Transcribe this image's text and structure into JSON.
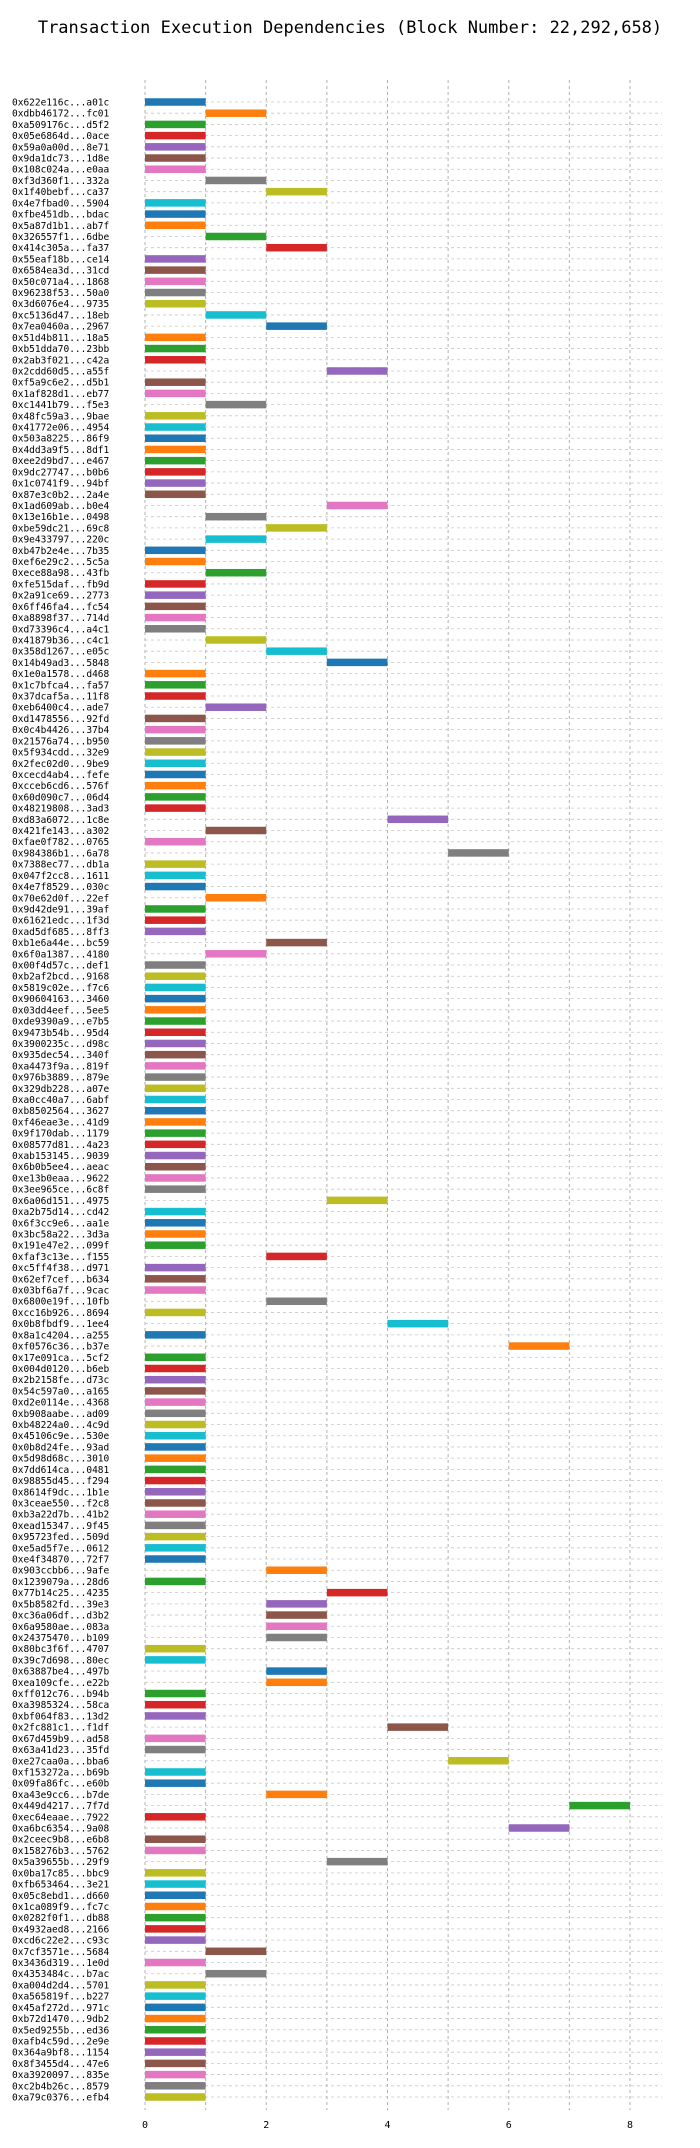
{
  "chart_data": {
    "type": "bar",
    "title": "Transaction Execution Dependencies (Block Number: 22,292,658)",
    "xlabel": "",
    "ylabel": "",
    "xlim": [
      0,
      8
    ],
    "x_ticks": [
      0,
      2,
      4,
      6,
      8
    ],
    "grid": true,
    "legend": "none",
    "colors": [
      "#1f77b4",
      "#ff7f0e",
      "#2ca02c",
      "#d62728",
      "#9467bd",
      "#8c564b",
      "#e377c2",
      "#7f7f7f",
      "#bcbd22",
      "#17becf"
    ],
    "bars": [
      {
        "tx": "0x622e116c...a01c",
        "start": 0,
        "end": 1
      },
      {
        "tx": "0xdbb46172...fc01",
        "start": 1,
        "end": 2
      },
      {
        "tx": "0xa509176c...d5f2",
        "start": 0,
        "end": 1
      },
      {
        "tx": "0x05e6864d...0ace",
        "start": 0,
        "end": 1
      },
      {
        "tx": "0x59a0a00d...8e71",
        "start": 0,
        "end": 1
      },
      {
        "tx": "0x9da1dc73...1d8e",
        "start": 0,
        "end": 1
      },
      {
        "tx": "0x108c024a...e0aa",
        "start": 0,
        "end": 1
      },
      {
        "tx": "0xf3d360f1...332a",
        "start": 1,
        "end": 2
      },
      {
        "tx": "0x1f40bebf...ca37",
        "start": 2,
        "end": 3
      },
      {
        "tx": "0x4e7fbad0...5904",
        "start": 0,
        "end": 1
      },
      {
        "tx": "0xfbe451db...bdac",
        "start": 0,
        "end": 1
      },
      {
        "tx": "0x5a87d1b1...ab7f",
        "start": 0,
        "end": 1
      },
      {
        "tx": "0x326557f1...6dbe",
        "start": 1,
        "end": 2
      },
      {
        "tx": "0x414c305a...fa37",
        "start": 2,
        "end": 3
      },
      {
        "tx": "0x55eaf18b...ce14",
        "start": 0,
        "end": 1
      },
      {
        "tx": "0x6584ea3d...31cd",
        "start": 0,
        "end": 1
      },
      {
        "tx": "0x50c071a4...1868",
        "start": 0,
        "end": 1
      },
      {
        "tx": "0x96238f53...50a0",
        "start": 0,
        "end": 1
      },
      {
        "tx": "0x3d6076e4...9735",
        "start": 0,
        "end": 1
      },
      {
        "tx": "0xc5136d47...18eb",
        "start": 1,
        "end": 2
      },
      {
        "tx": "0x7ea0460a...2967",
        "start": 2,
        "end": 3
      },
      {
        "tx": "0x51d4b811...18a5",
        "start": 0,
        "end": 1
      },
      {
        "tx": "0xb51dda70...23bb",
        "start": 0,
        "end": 1
      },
      {
        "tx": "0x2ab3f021...c42a",
        "start": 0,
        "end": 1
      },
      {
        "tx": "0x2cdd60d5...a55f",
        "start": 3,
        "end": 4
      },
      {
        "tx": "0xf5a9c6e2...d5b1",
        "start": 0,
        "end": 1
      },
      {
        "tx": "0x1af828d1...eb77",
        "start": 0,
        "end": 1
      },
      {
        "tx": "0xc1441b79...f5e3",
        "start": 1,
        "end": 2
      },
      {
        "tx": "0x48fc59a3...9bae",
        "start": 0,
        "end": 1
      },
      {
        "tx": "0x41772e06...4954",
        "start": 0,
        "end": 1
      },
      {
        "tx": "0x503a8225...86f9",
        "start": 0,
        "end": 1
      },
      {
        "tx": "0x4dd3a9f5...8df1",
        "start": 0,
        "end": 1
      },
      {
        "tx": "0xee2d9bd7...e467",
        "start": 0,
        "end": 1
      },
      {
        "tx": "0x9dc27747...b0b6",
        "start": 0,
        "end": 1
      },
      {
        "tx": "0x1c0741f9...94bf",
        "start": 0,
        "end": 1
      },
      {
        "tx": "0x87e3c0b2...2a4e",
        "start": 0,
        "end": 1
      },
      {
        "tx": "0x1ad609ab...b0e4",
        "start": 3,
        "end": 4
      },
      {
        "tx": "0x13e16b1e...0498",
        "start": 1,
        "end": 2
      },
      {
        "tx": "0xbe59dc21...69c8",
        "start": 2,
        "end": 3
      },
      {
        "tx": "0x9e433797...220c",
        "start": 1,
        "end": 2
      },
      {
        "tx": "0xb47b2e4e...7b35",
        "start": 0,
        "end": 1
      },
      {
        "tx": "0xef6e29c2...5c5a",
        "start": 0,
        "end": 1
      },
      {
        "tx": "0xece88a98...43fb",
        "start": 1,
        "end": 2
      },
      {
        "tx": "0xfe515daf...fb9d",
        "start": 0,
        "end": 1
      },
      {
        "tx": "0x2a91ce69...2773",
        "start": 0,
        "end": 1
      },
      {
        "tx": "0x6ff46fa4...fc54",
        "start": 0,
        "end": 1
      },
      {
        "tx": "0xa8898f37...714d",
        "start": 0,
        "end": 1
      },
      {
        "tx": "0xd73396c4...a4c1",
        "start": 0,
        "end": 1
      },
      {
        "tx": "0x41879b36...c4c1",
        "start": 1,
        "end": 2
      },
      {
        "tx": "0x358d1267...e05c",
        "start": 2,
        "end": 3
      },
      {
        "tx": "0x14b49ad3...5848",
        "start": 3,
        "end": 4
      },
      {
        "tx": "0x1e0a1578...d468",
        "start": 0,
        "end": 1
      },
      {
        "tx": "0x1c7bfca4...fa57",
        "start": 0,
        "end": 1
      },
      {
        "tx": "0x37dcaf5a...11f8",
        "start": 0,
        "end": 1
      },
      {
        "tx": "0xeb6400c4...ade7",
        "start": 1,
        "end": 2
      },
      {
        "tx": "0xd1478556...92fd",
        "start": 0,
        "end": 1
      },
      {
        "tx": "0x0c4b4426...37b4",
        "start": 0,
        "end": 1
      },
      {
        "tx": "0x21576a74...b950",
        "start": 0,
        "end": 1
      },
      {
        "tx": "0x5f934cdd...32e9",
        "start": 0,
        "end": 1
      },
      {
        "tx": "0x2fec02d0...9be9",
        "start": 0,
        "end": 1
      },
      {
        "tx": "0xcecd4ab4...fefe",
        "start": 0,
        "end": 1
      },
      {
        "tx": "0xcceb6cd6...576f",
        "start": 0,
        "end": 1
      },
      {
        "tx": "0x60d090c7...06d4",
        "start": 0,
        "end": 1
      },
      {
        "tx": "0x48219808...3ad3",
        "start": 0,
        "end": 1
      },
      {
        "tx": "0xd83a6072...1c8e",
        "start": 4,
        "end": 5
      },
      {
        "tx": "0x421fe143...a302",
        "start": 1,
        "end": 2
      },
      {
        "tx": "0xfae0f782...0765",
        "start": 0,
        "end": 1
      },
      {
        "tx": "0x984386b1...6a78",
        "start": 5,
        "end": 6
      },
      {
        "tx": "0x7388ec77...db1a",
        "start": 0,
        "end": 1
      },
      {
        "tx": "0x047f2cc8...1611",
        "start": 0,
        "end": 1
      },
      {
        "tx": "0x4e7f8529...030c",
        "start": 0,
        "end": 1
      },
      {
        "tx": "0x70e62d0f...22ef",
        "start": 1,
        "end": 2
      },
      {
        "tx": "0x9d42de91...39af",
        "start": 0,
        "end": 1
      },
      {
        "tx": "0x61621edc...1f3d",
        "start": 0,
        "end": 1
      },
      {
        "tx": "0xad5df685...8ff3",
        "start": 0,
        "end": 1
      },
      {
        "tx": "0xb1e6a44e...bc59",
        "start": 2,
        "end": 3
      },
      {
        "tx": "0x6f0a1387...4180",
        "start": 1,
        "end": 2
      },
      {
        "tx": "0x00f4d57c...def1",
        "start": 0,
        "end": 1
      },
      {
        "tx": "0xb2af2bcd...9168",
        "start": 0,
        "end": 1
      },
      {
        "tx": "0x5819c02e...f7c6",
        "start": 0,
        "end": 1
      },
      {
        "tx": "0x90604163...3460",
        "start": 0,
        "end": 1
      },
      {
        "tx": "0x03dd4eef...5ee5",
        "start": 0,
        "end": 1
      },
      {
        "tx": "0xde9390a9...e7b5",
        "start": 0,
        "end": 1
      },
      {
        "tx": "0x9473b54b...95d4",
        "start": 0,
        "end": 1
      },
      {
        "tx": "0x3900235c...d98c",
        "start": 0,
        "end": 1
      },
      {
        "tx": "0x935dec54...340f",
        "start": 0,
        "end": 1
      },
      {
        "tx": "0xa4473f9a...819f",
        "start": 0,
        "end": 1
      },
      {
        "tx": "0x976b3889...879e",
        "start": 0,
        "end": 1
      },
      {
        "tx": "0x329db228...a07e",
        "start": 0,
        "end": 1
      },
      {
        "tx": "0xa0cc40a7...6abf",
        "start": 0,
        "end": 1
      },
      {
        "tx": "0xb8502564...3627",
        "start": 0,
        "end": 1
      },
      {
        "tx": "0xf46eae3e...41d9",
        "start": 0,
        "end": 1
      },
      {
        "tx": "0x9f170dab...1179",
        "start": 0,
        "end": 1
      },
      {
        "tx": "0x08577d81...4a23",
        "start": 0,
        "end": 1
      },
      {
        "tx": "0xab153145...9039",
        "start": 0,
        "end": 1
      },
      {
        "tx": "0x6b0b5ee4...aeac",
        "start": 0,
        "end": 1
      },
      {
        "tx": "0xe13b0eaa...9622",
        "start": 0,
        "end": 1
      },
      {
        "tx": "0x3ee965ce...6c8f",
        "start": 0,
        "end": 1
      },
      {
        "tx": "0x6a06d151...4975",
        "start": 3,
        "end": 4
      },
      {
        "tx": "0xa2b75d14...cd42",
        "start": 0,
        "end": 1
      },
      {
        "tx": "0x6f3cc9e6...aa1e",
        "start": 0,
        "end": 1
      },
      {
        "tx": "0x3bc58a22...3d3a",
        "start": 0,
        "end": 1
      },
      {
        "tx": "0x191e47e2...099f",
        "start": 0,
        "end": 1
      },
      {
        "tx": "0xfaf3c13e...f155",
        "start": 2,
        "end": 3
      },
      {
        "tx": "0xc5ff4f38...d971",
        "start": 0,
        "end": 1
      },
      {
        "tx": "0x62ef7cef...b634",
        "start": 0,
        "end": 1
      },
      {
        "tx": "0x03bf6a7f...9cac",
        "start": 0,
        "end": 1
      },
      {
        "tx": "0x6800e19f...10fb",
        "start": 2,
        "end": 3
      },
      {
        "tx": "0xcc16b926...8694",
        "start": 0,
        "end": 1
      },
      {
        "tx": "0x0b8fbdf9...1ee4",
        "start": 4,
        "end": 5
      },
      {
        "tx": "0x8a1c4204...a255",
        "start": 0,
        "end": 1
      },
      {
        "tx": "0xf0576c36...b37e",
        "start": 6,
        "end": 7
      },
      {
        "tx": "0x17e091ca...5cf2",
        "start": 0,
        "end": 1
      },
      {
        "tx": "0x004d0120...b6eb",
        "start": 0,
        "end": 1
      },
      {
        "tx": "0x2b2158fe...d73c",
        "start": 0,
        "end": 1
      },
      {
        "tx": "0x54c597a0...a165",
        "start": 0,
        "end": 1
      },
      {
        "tx": "0xd2e0114e...4368",
        "start": 0,
        "end": 1
      },
      {
        "tx": "0xb908aabe...ad09",
        "start": 0,
        "end": 1
      },
      {
        "tx": "0xb48224a0...4c9d",
        "start": 0,
        "end": 1
      },
      {
        "tx": "0x45106c9e...530e",
        "start": 0,
        "end": 1
      },
      {
        "tx": "0x0b8d24fe...93ad",
        "start": 0,
        "end": 1
      },
      {
        "tx": "0x5d98d68c...3010",
        "start": 0,
        "end": 1
      },
      {
        "tx": "0x7dd614ca...0481",
        "start": 0,
        "end": 1
      },
      {
        "tx": "0x98855d45...f294",
        "start": 0,
        "end": 1
      },
      {
        "tx": "0x8614f9dc...1b1e",
        "start": 0,
        "end": 1
      },
      {
        "tx": "0x3ceae550...f2c8",
        "start": 0,
        "end": 1
      },
      {
        "tx": "0xb3a22d7b...41b2",
        "start": 0,
        "end": 1
      },
      {
        "tx": "0xead15347...9f45",
        "start": 0,
        "end": 1
      },
      {
        "tx": "0x95723fed...509d",
        "start": 0,
        "end": 1
      },
      {
        "tx": "0xe5ad5f7e...0612",
        "start": 0,
        "end": 1
      },
      {
        "tx": "0xe4f34870...72f7",
        "start": 0,
        "end": 1
      },
      {
        "tx": "0x903ccbb6...9afe",
        "start": 2,
        "end": 3
      },
      {
        "tx": "0x1239079a...28d6",
        "start": 0,
        "end": 1
      },
      {
        "tx": "0x77b14c25...4235",
        "start": 3,
        "end": 4
      },
      {
        "tx": "0x5b8582fd...39e3",
        "start": 2,
        "end": 3
      },
      {
        "tx": "0xc36a06df...d3b2",
        "start": 2,
        "end": 3
      },
      {
        "tx": "0x6a9580ae...083a",
        "start": 2,
        "end": 3
      },
      {
        "tx": "0x24375470...b109",
        "start": 2,
        "end": 3
      },
      {
        "tx": "0x80bc3f6f...4707",
        "start": 0,
        "end": 1
      },
      {
        "tx": "0x39c7d698...80ec",
        "start": 0,
        "end": 1
      },
      {
        "tx": "0x63887be4...497b",
        "start": 2,
        "end": 3
      },
      {
        "tx": "0xea109cfe...e22b",
        "start": 2,
        "end": 3
      },
      {
        "tx": "0xff012c76...b94b",
        "start": 0,
        "end": 1
      },
      {
        "tx": "0xa3985324...58ca",
        "start": 0,
        "end": 1
      },
      {
        "tx": "0xbf064f83...13d2",
        "start": 0,
        "end": 1
      },
      {
        "tx": "0x2fc881c1...f1df",
        "start": 4,
        "end": 5
      },
      {
        "tx": "0x67d459b9...ad58",
        "start": 0,
        "end": 1
      },
      {
        "tx": "0x63a41d23...35fd",
        "start": 0,
        "end": 1
      },
      {
        "tx": "0xe27caa0a...bba6",
        "start": 5,
        "end": 6
      },
      {
        "tx": "0xf153272a...b69b",
        "start": 0,
        "end": 1
      },
      {
        "tx": "0x09fa86fc...e60b",
        "start": 0,
        "end": 1
      },
      {
        "tx": "0xa43e9cc6...b7de",
        "start": 2,
        "end": 3
      },
      {
        "tx": "0x449d4217...7f7d",
        "start": 7,
        "end": 8
      },
      {
        "tx": "0xec64eaae...7922",
        "start": 0,
        "end": 1
      },
      {
        "tx": "0xa6bc6354...9a08",
        "start": 6,
        "end": 7
      },
      {
        "tx": "0x2ceec9b8...e6b8",
        "start": 0,
        "end": 1
      },
      {
        "tx": "0x158276b3...5762",
        "start": 0,
        "end": 1
      },
      {
        "tx": "0x5a39655b...29f9",
        "start": 3,
        "end": 4
      },
      {
        "tx": "0x0ba17c85...bbc9",
        "start": 0,
        "end": 1
      },
      {
        "tx": "0xfb653464...3e21",
        "start": 0,
        "end": 1
      },
      {
        "tx": "0x05c8ebd1...d660",
        "start": 0,
        "end": 1
      },
      {
        "tx": "0x1ca089f9...fc7c",
        "start": 0,
        "end": 1
      },
      {
        "tx": "0x0282f0f1...db88",
        "start": 0,
        "end": 1
      },
      {
        "tx": "0x4932aed8...2166",
        "start": 0,
        "end": 1
      },
      {
        "tx": "0xcd6c22e2...c93c",
        "start": 0,
        "end": 1
      },
      {
        "tx": "0x7cf3571e...5684",
        "start": 1,
        "end": 2
      },
      {
        "tx": "0x3436d319...1e0d",
        "start": 0,
        "end": 1
      },
      {
        "tx": "0x4353484c...b7ac",
        "start": 1,
        "end": 2
      },
      {
        "tx": "0xa004d2d4...5701",
        "start": 0,
        "end": 1
      },
      {
        "tx": "0xa565819f...b227",
        "start": 0,
        "end": 1
      },
      {
        "tx": "0x45af272d...971c",
        "start": 0,
        "end": 1
      },
      {
        "tx": "0xb72d1470...9db2",
        "start": 0,
        "end": 1
      },
      {
        "tx": "0x5ed9255b...ed36",
        "start": 0,
        "end": 1
      },
      {
        "tx": "0xafb4c59d...2e9e",
        "start": 0,
        "end": 1
      },
      {
        "tx": "0x364a9bf8...1154",
        "start": 0,
        "end": 1
      },
      {
        "tx": "0x8f3455d4...47e6",
        "start": 0,
        "end": 1
      },
      {
        "tx": "0xa3920097...835e",
        "start": 0,
        "end": 1
      },
      {
        "tx": "0xc2b4b26c...8579",
        "start": 0,
        "end": 1
      },
      {
        "tx": "0xa79c0376...efb4",
        "start": 0,
        "end": 1
      }
    ]
  }
}
